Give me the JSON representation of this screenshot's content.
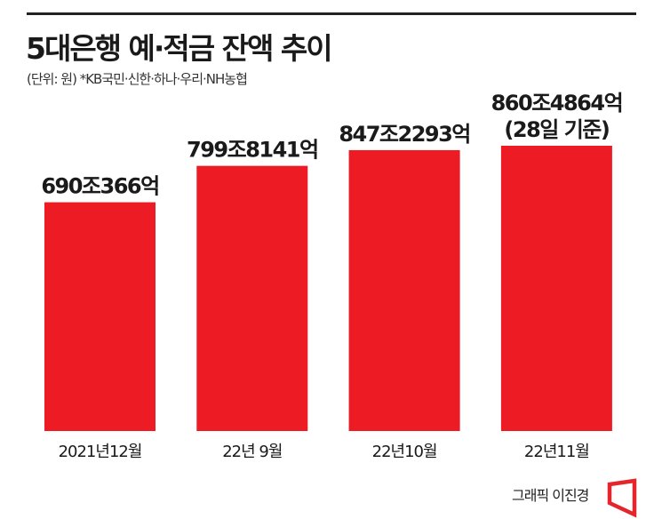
{
  "title": "5대은행 예·적금 잔액 추이",
  "subtitle": "(단위: 원) *KB국민·신한·하나·우리·NH농협",
  "credit": "그래픽 이진경",
  "colors": {
    "bar": "#ed1c24",
    "logo": "#e4252b"
  },
  "chart_data": {
    "type": "bar",
    "title": "5대은행 예·적금 잔액 추이",
    "xlabel": "",
    "ylabel": "",
    "unit": "조원",
    "categories": [
      "2021년12월",
      "22년 9월",
      "22년10월",
      "22년11월"
    ],
    "values": [
      690.0366,
      799.8141,
      847.2293,
      860.4864
    ],
    "data_labels": [
      [
        "690조366억"
      ],
      [
        "799조8141억"
      ],
      [
        "847조2293억"
      ],
      [
        "860조4864억",
        "(28일 기준)"
      ]
    ],
    "ylim": [
      0,
      900
    ],
    "grid": false
  }
}
